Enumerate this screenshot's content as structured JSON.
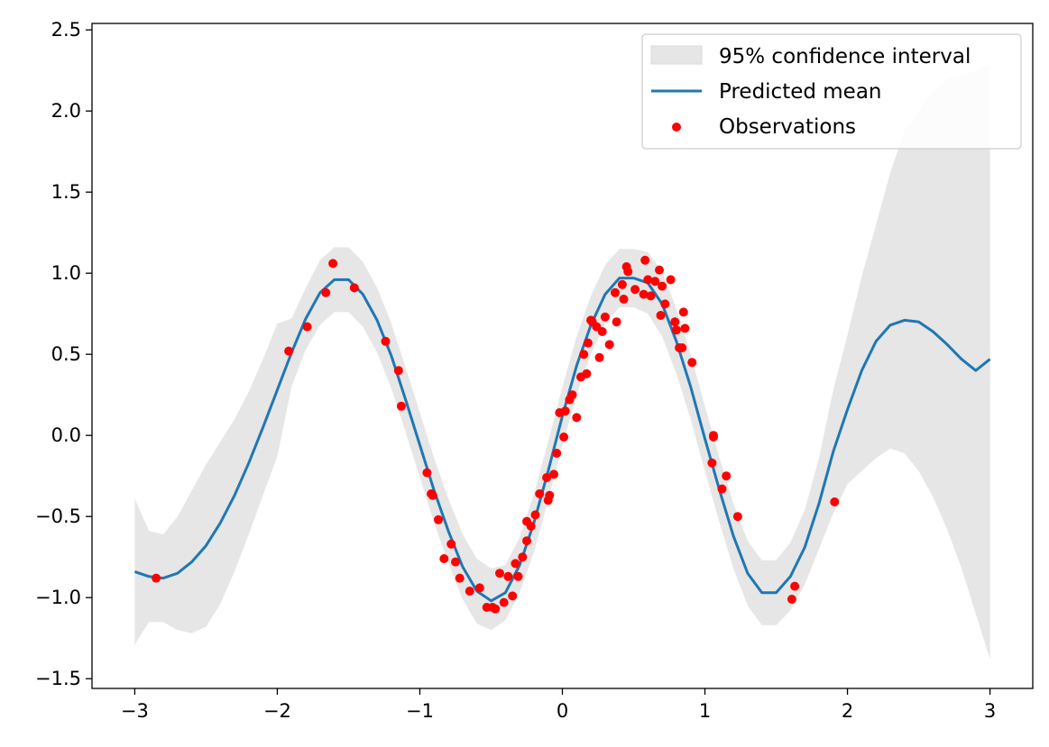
{
  "chart_data": {
    "type": "line",
    "title": "",
    "xlabel": "",
    "ylabel": "",
    "xlim": [
      -3.3,
      3.3
    ],
    "ylim": [
      -1.56,
      2.54
    ],
    "x_ticks": [
      -3,
      -2,
      -1,
      0,
      1,
      2,
      3
    ],
    "x_tick_labels": [
      "−3",
      "−2",
      "−1",
      "0",
      "1",
      "2",
      "3"
    ],
    "y_ticks": [
      -1.5,
      -1.0,
      -0.5,
      0.0,
      0.5,
      1.0,
      1.5,
      2.0,
      2.5
    ],
    "y_tick_labels": [
      "−1.5",
      "−1.0",
      "−0.5",
      "0.0",
      "0.5",
      "1.0",
      "1.5",
      "2.0",
      "2.5"
    ],
    "grid": false,
    "legend": {
      "placement": "top-right",
      "entries": [
        "95% confidence interval",
        "Predicted mean",
        "Observations"
      ]
    },
    "colors": {
      "mean": "#1f77b4",
      "band": "#e6e6e6",
      "points": "#ff0000",
      "axes": "#000000"
    },
    "series": [
      {
        "name": "Predicted mean",
        "type": "line",
        "x": [
          -3.0,
          -2.9,
          -2.8,
          -2.7,
          -2.6,
          -2.5,
          -2.4,
          -2.3,
          -2.2,
          -2.1,
          -2.0,
          -1.9,
          -1.8,
          -1.7,
          -1.6,
          -1.5,
          -1.4,
          -1.3,
          -1.2,
          -1.1,
          -1.0,
          -0.9,
          -0.8,
          -0.7,
          -0.6,
          -0.5,
          -0.4,
          -0.3,
          -0.2,
          -0.1,
          0.0,
          0.1,
          0.2,
          0.3,
          0.4,
          0.5,
          0.6,
          0.7,
          0.8,
          0.9,
          1.0,
          1.1,
          1.2,
          1.3,
          1.4,
          1.5,
          1.6,
          1.7,
          1.8,
          1.9,
          2.0,
          2.1,
          2.2,
          2.3,
          2.4,
          2.5,
          2.6,
          2.7,
          2.8,
          2.9,
          3.0
        ],
        "y": [
          -0.84,
          -0.87,
          -0.88,
          -0.85,
          -0.78,
          -0.68,
          -0.54,
          -0.37,
          -0.17,
          0.05,
          0.28,
          0.51,
          0.72,
          0.88,
          0.96,
          0.96,
          0.87,
          0.71,
          0.49,
          0.22,
          -0.06,
          -0.34,
          -0.59,
          -0.81,
          -0.96,
          -1.02,
          -0.97,
          -0.8,
          -0.54,
          -0.22,
          0.12,
          0.43,
          0.68,
          0.87,
          0.97,
          0.97,
          0.94,
          0.81,
          0.58,
          0.3,
          -0.02,
          -0.33,
          -0.62,
          -0.85,
          -0.97,
          -0.97,
          -0.87,
          -0.69,
          -0.42,
          -0.1,
          0.16,
          0.4,
          0.58,
          0.68,
          0.71,
          0.7,
          0.64,
          0.56,
          0.47,
          0.4,
          0.47
        ]
      },
      {
        "name": "95% confidence interval",
        "type": "band",
        "x": [
          -3.0,
          -2.9,
          -2.8,
          -2.7,
          -2.6,
          -2.5,
          -2.4,
          -2.3,
          -2.2,
          -2.1,
          -2.0,
          -1.9,
          -1.8,
          -1.7,
          -1.6,
          -1.5,
          -1.4,
          -1.3,
          -1.2,
          -1.1,
          -1.0,
          -0.9,
          -0.8,
          -0.7,
          -0.6,
          -0.5,
          -0.4,
          -0.3,
          -0.2,
          -0.1,
          0.0,
          0.1,
          0.2,
          0.3,
          0.4,
          0.5,
          0.6,
          0.7,
          0.8,
          0.9,
          1.0,
          1.1,
          1.2,
          1.3,
          1.4,
          1.5,
          1.6,
          1.7,
          1.8,
          1.9,
          2.0,
          2.1,
          2.2,
          2.3,
          2.4,
          2.5,
          2.6,
          2.7,
          2.8,
          2.9,
          3.0
        ],
        "lower": [
          -1.29,
          -1.15,
          -1.15,
          -1.2,
          -1.22,
          -1.18,
          -1.04,
          -0.84,
          -0.61,
          -0.37,
          -0.13,
          0.3,
          0.53,
          0.68,
          0.76,
          0.76,
          0.67,
          0.51,
          0.29,
          0.02,
          -0.26,
          -0.54,
          -0.79,
          -1.01,
          -1.16,
          -1.2,
          -1.14,
          -0.97,
          -0.72,
          -0.4,
          -0.06,
          0.25,
          0.5,
          0.69,
          0.79,
          0.79,
          0.75,
          0.61,
          0.38,
          0.1,
          -0.22,
          -0.53,
          -0.82,
          -1.05,
          -1.17,
          -1.17,
          -1.08,
          -0.92,
          -0.7,
          -0.48,
          -0.3,
          -0.22,
          -0.14,
          -0.08,
          -0.11,
          -0.22,
          -0.38,
          -0.58,
          -0.82,
          -1.1,
          -1.38
        ],
        "upper": [
          -0.39,
          -0.59,
          -0.61,
          -0.5,
          -0.34,
          -0.18,
          -0.04,
          0.1,
          0.27,
          0.47,
          0.69,
          0.72,
          0.91,
          1.08,
          1.16,
          1.16,
          1.07,
          0.91,
          0.69,
          0.42,
          0.14,
          -0.14,
          -0.39,
          -0.61,
          -0.76,
          -0.82,
          -0.8,
          -0.63,
          -0.36,
          -0.04,
          0.3,
          0.61,
          0.86,
          1.05,
          1.15,
          1.15,
          1.13,
          1.01,
          0.78,
          0.5,
          0.18,
          -0.13,
          -0.42,
          -0.65,
          -0.77,
          -0.77,
          -0.66,
          -0.46,
          -0.14,
          0.28,
          0.62,
          0.98,
          1.3,
          1.62,
          1.88,
          2.0,
          2.12,
          2.2,
          2.22,
          2.25,
          2.29
        ]
      },
      {
        "name": "Observations",
        "type": "scatter",
        "x": [
          -2.85,
          -1.92,
          -1.79,
          -1.66,
          -1.61,
          -1.46,
          -1.24,
          -1.15,
          -1.13,
          -0.95,
          -0.92,
          -0.91,
          -0.87,
          -0.83,
          -0.78,
          -0.75,
          -0.72,
          -0.65,
          -0.58,
          -0.53,
          -0.49,
          -0.47,
          -0.44,
          -0.41,
          -0.38,
          -0.35,
          -0.33,
          -0.31,
          -0.28,
          -0.25,
          -0.25,
          -0.22,
          -0.19,
          -0.16,
          -0.11,
          -0.1,
          -0.09,
          -0.06,
          -0.04,
          -0.02,
          0.01,
          0.02,
          0.05,
          0.07,
          0.1,
          0.13,
          0.15,
          0.17,
          0.18,
          0.2,
          0.21,
          0.24,
          0.26,
          0.28,
          0.3,
          0.33,
          0.37,
          0.38,
          0.42,
          0.43,
          0.45,
          0.46,
          0.51,
          0.57,
          0.58,
          0.6,
          0.62,
          0.65,
          0.68,
          0.69,
          0.7,
          0.72,
          0.76,
          0.79,
          0.8,
          0.82,
          0.84,
          0.85,
          0.86,
          0.91,
          1.05,
          1.06,
          1.06,
          1.12,
          1.15,
          1.23,
          1.61,
          1.63,
          1.91
        ],
        "y": [
          -0.88,
          0.52,
          0.67,
          0.88,
          1.06,
          0.91,
          0.58,
          0.4,
          0.18,
          -0.23,
          -0.36,
          -0.37,
          -0.52,
          -0.76,
          -0.67,
          -0.78,
          -0.88,
          -0.96,
          -0.94,
          -1.06,
          -1.06,
          -1.07,
          -0.85,
          -1.03,
          -0.87,
          -0.99,
          -0.79,
          -0.87,
          -0.75,
          -0.53,
          -0.65,
          -0.56,
          -0.49,
          -0.36,
          -0.26,
          -0.4,
          -0.37,
          -0.24,
          -0.11,
          0.14,
          -0.01,
          0.15,
          0.22,
          0.25,
          0.11,
          0.36,
          0.5,
          0.38,
          0.57,
          0.71,
          0.7,
          0.67,
          0.48,
          0.64,
          0.73,
          0.56,
          0.88,
          0.7,
          0.93,
          0.84,
          1.04,
          1.01,
          0.9,
          0.87,
          1.08,
          0.96,
          0.86,
          0.95,
          1.02,
          0.74,
          0.92,
          0.81,
          0.96,
          0.7,
          0.65,
          0.54,
          0.54,
          0.76,
          0.66,
          0.45,
          -0.17,
          -0.01,
          0.0,
          -0.33,
          -0.25,
          -0.5,
          -1.01,
          -0.93,
          -0.41
        ]
      }
    ]
  }
}
